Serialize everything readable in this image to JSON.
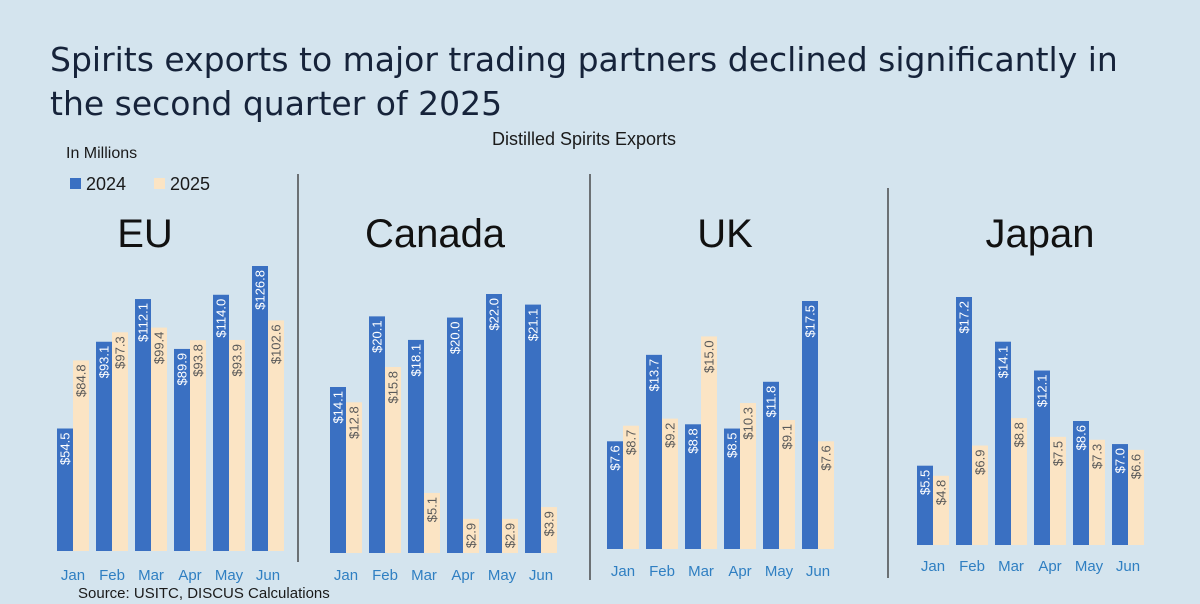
{
  "headline": "Spirits exports to major trading partners declined significantly in the second quarter of 2025",
  "source": "Source: USITC, DISCUS Calculations",
  "chart_data": {
    "type": "bar",
    "title": "Distilled Spirits Exports",
    "units": "In Millions",
    "categories": [
      "Jan",
      "Feb",
      "Mar",
      "Apr",
      "May",
      "Jun"
    ],
    "legend": [
      {
        "name": "2024",
        "color": "#3a70c2"
      },
      {
        "name": "2025",
        "color": "#fbe4c4"
      }
    ],
    "colors": {
      "2024": "#3a70c2",
      "2025": "#fbe4c4",
      "month_label": "#2f7fc2",
      "background": "#d4e4ee"
    },
    "label_prefix": "$",
    "panels": [
      {
        "name": "EU",
        "ylim": [
          0,
          135
        ],
        "series": [
          {
            "name": "2024",
            "values": [
              54.5,
              93.1,
              112.1,
              89.9,
              114.0,
              126.8
            ],
            "labels": [
              "$54.5",
              "$93.1",
              "$112.1",
              "$89.9",
              "$114.0",
              "$126.8"
            ]
          },
          {
            "name": "2025",
            "values": [
              84.8,
              97.3,
              99.4,
              93.8,
              93.9,
              102.6
            ],
            "labels": [
              "$84.8",
              "$97.3",
              "$99.4",
              "$93.8",
              "$93.9",
              "$102.6"
            ]
          }
        ]
      },
      {
        "name": "Canada",
        "ylim": [
          0,
          23.5
        ],
        "series": [
          {
            "name": "2024",
            "values": [
              14.1,
              20.1,
              18.1,
              20.0,
              22.0,
              21.1
            ],
            "labels": [
              "$14.1",
              "$20.1",
              "$18.1",
              "$20.0",
              "$22.0",
              "$21.1"
            ]
          },
          {
            "name": "2025",
            "values": [
              12.8,
              15.8,
              5.1,
              2.9,
              2.9,
              3.9
            ],
            "labels": [
              "$12.8",
              "$15.8",
              "$5.1",
              "$2.9",
              "$2.9",
              "$3.9"
            ]
          }
        ]
      },
      {
        "name": "UK",
        "ylim": [
          0,
          18.3
        ],
        "series": [
          {
            "name": "2024",
            "values": [
              7.6,
              13.7,
              8.8,
              8.5,
              11.8,
              17.5
            ],
            "labels": [
              "$7.6",
              "$13.7",
              "$8.8",
              "$8.5",
              "$11.8",
              "$17.5"
            ]
          },
          {
            "name": "2025",
            "values": [
              8.7,
              9.2,
              15.0,
              10.3,
              9.1,
              7.6
            ],
            "labels": [
              "$8.7",
              "$9.2",
              "$15.0",
              "$10.3",
              "$9.1",
              "$7.6"
            ]
          }
        ]
      },
      {
        "name": "Japan",
        "ylim": [
          0,
          18.4
        ],
        "series": [
          {
            "name": "2024",
            "values": [
              5.5,
              17.2,
              14.1,
              12.1,
              8.6,
              7.0
            ],
            "labels": [
              "$5.5",
              "$17.2",
              "$14.1",
              "$12.1",
              "$8.6",
              "$7.0"
            ]
          },
          {
            "name": "2025",
            "values": [
              4.8,
              6.9,
              8.8,
              7.5,
              7.3,
              6.6
            ],
            "labels": [
              "$4.8",
              "$6.9",
              "$8.8",
              "$7.5",
              "$7.3",
              "$6.6"
            ]
          }
        ]
      }
    ]
  }
}
